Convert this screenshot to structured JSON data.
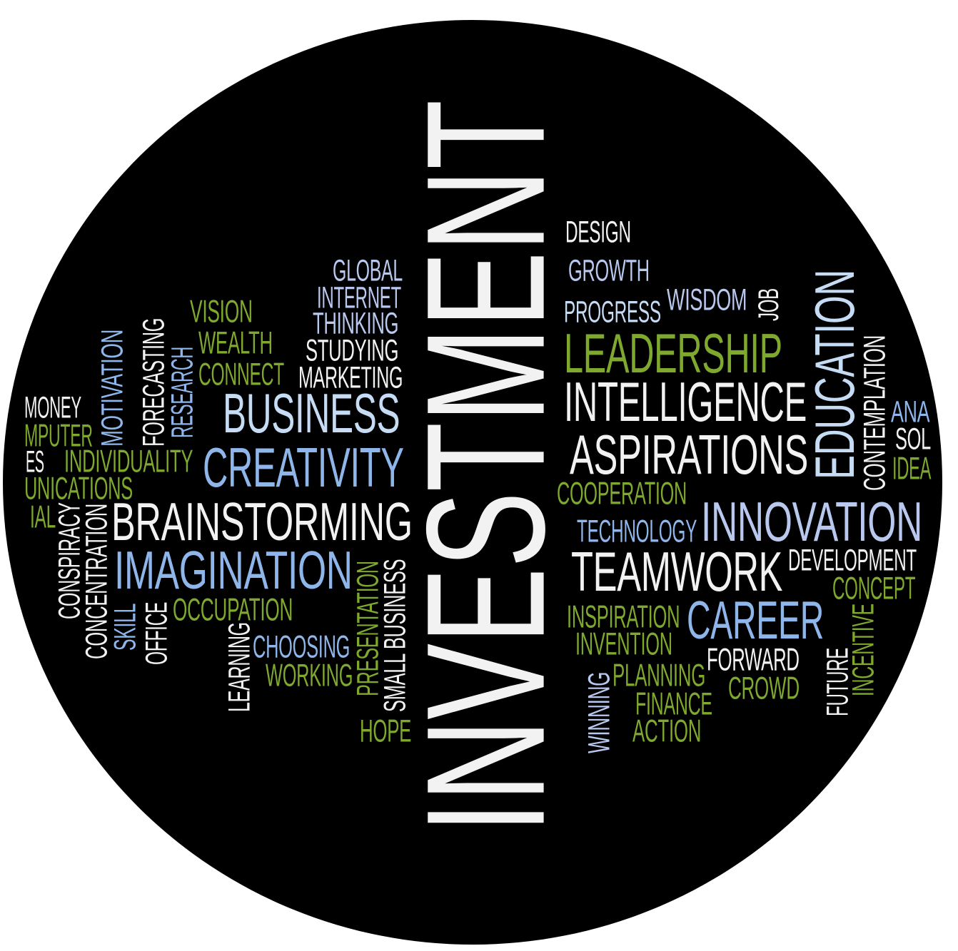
{
  "colors": {
    "background": "#000000",
    "white": "#f2f2f2",
    "green": "#7ea82e",
    "blue": "#8fb6ea",
    "light_blue": "#c6dcf5",
    "lavender": "#b9c8ee"
  },
  "words": {
    "investment": "INVESTMENT",
    "design": "DESIGN",
    "growth": "GROWTH",
    "progress": "PROGRESS",
    "wisdom": "WISDOM",
    "job": "JOB",
    "leadership": "LEADERSHIP",
    "education": "EDUCATION",
    "contemplation": "CONTEMPLATION",
    "intelligence": "INTELLIGENCE",
    "aspirations": "ASPIRATIONS",
    "cooperation": "COOPERATION",
    "technology": "TECHNOLOGY",
    "innovation": "INNOVATION",
    "teamwork": "TEAMWORK",
    "development": "DEVELOPMENT",
    "concept": "CONCEPT",
    "inspiration": "INSPIRATION",
    "invention": "INVENTION",
    "career": "CAREER",
    "forward": "FORWARD",
    "crowd": "CROWD",
    "planning": "PLANNING",
    "finance": "FINANCE",
    "action": "ACTION",
    "winning": "WINNING",
    "future": "FUTURE",
    "incentive": "INCENTIVE",
    "ana": "ANA",
    "sol": "SOL",
    "idea": "IDEA",
    "global": "GLOBAL",
    "internet": "INTERNET",
    "thinking": "THINKING",
    "studying": "STUDYING",
    "marketing": "MARKETING",
    "vision": "VISION",
    "wealth": "WEALTH",
    "connect": "CONNECT",
    "business": "BUSINESS",
    "creativity": "CREATIVITY",
    "brainstorming": "BRAINSTORMING",
    "imagination": "IMAGINATION",
    "occupation": "OCCUPATION",
    "choosing": "CHOOSING",
    "working": "WORKING",
    "hope": "HOPE",
    "small_business": "SMALL BUSINESS",
    "presentation": "PRESENTATION",
    "learning": "LEARNING",
    "office": "OFFICE",
    "skill": "SKILL",
    "concentration": "CONCENTRATION",
    "conspiracy": "CONSPIRACY",
    "motivation": "MOTIVATION",
    "forecasting": "FORECASTING",
    "research": "RESEARCH",
    "money": "MONEY",
    "mputer": "MPUTER",
    "es": "ES",
    "individuality": "INDIVIDUALITY",
    "unications": "UNICATIONS",
    "ial": "IAL"
  }
}
